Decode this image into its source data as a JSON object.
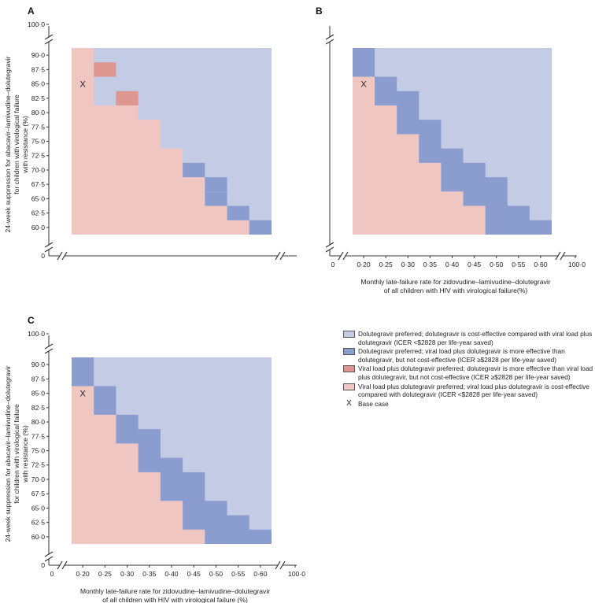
{
  "colors": {
    "dtg": "#c4cbe5",
    "dtg_more_effective": "#8b9dcf",
    "vl_more_effective": "#de9690",
    "vl": "#f0c6c3",
    "axis": "#333333"
  },
  "legend": {
    "items": [
      {
        "key": "dtg",
        "label": "Dolutegravir preferred; dolutegravir is cost-effective compared with viral load plus dolutegravir (ICER <$2828 per life-year saved)"
      },
      {
        "key": "dtg_more_effective",
        "label": "Dolutegravir preferred; viral load plus dolutegravir is more effective than dolutegravir, but not cost-effective (ICER ≥$2828 per life-year saved)"
      },
      {
        "key": "vl_more_effective",
        "label": "Viral load plus dolutegravir preferred; dolutegravir is more effective than viral load plus dolutegravir, but not cost-effective (ICER ≥$2828 per life-year saved)"
      },
      {
        "key": "vl",
        "label": "Viral load plus dolutegravir preferred; viral load plus dolutegravir is cost-effective compared with dolutegravir (ICER <$2828 per life-year saved)"
      }
    ],
    "base_case_marker": "X",
    "base_case_label": "Base case"
  },
  "chart_data": [
    {
      "panel": "A",
      "type": "heatmap",
      "xlabel": "",
      "ylabel": "24-week suppression for abacavir–lamivudine–dolutegravir for children with virological failure with resistance (%)",
      "x_ticks": [],
      "y_ticks": [
        "90·0",
        "87·5",
        "85·0",
        "82·5",
        "80·0",
        "77·5",
        "75·0",
        "72·5",
        "70·0",
        "67·5",
        "65·0",
        "62·5",
        "60·0"
      ],
      "x_break_labels": [],
      "y_break_labels": [
        "100·0",
        "0"
      ],
      "xlim": [
        0.175,
        0.625
      ],
      "ylim": [
        58.75,
        91.25
      ],
      "base_case": {
        "x": 0.2,
        "y": 85.0,
        "marker": "X"
      },
      "regions": [
        {
          "key": "vl",
          "outline": [
            [
              0.175,
              58.75
            ],
            [
              0.575,
              58.75
            ],
            [
              0.575,
              61.25
            ],
            [
              0.525,
              61.25
            ],
            [
              0.525,
              63.75
            ],
            [
              0.475,
              63.75
            ],
            [
              0.475,
              68.75
            ],
            [
              0.425,
              68.75
            ],
            [
              0.425,
              73.75
            ],
            [
              0.375,
              73.75
            ],
            [
              0.375,
              78.75
            ],
            [
              0.325,
              78.75
            ],
            [
              0.325,
              81.25
            ],
            [
              0.225,
              81.25
            ],
            [
              0.225,
              91.25
            ],
            [
              0.175,
              91.25
            ]
          ]
        },
        {
          "key": "vl_more_effective",
          "cells": [
            [
              0.25,
              87.5
            ],
            [
              0.3,
              82.5
            ]
          ]
        },
        {
          "key": "dtg_more_effective",
          "cells": [
            [
              0.45,
              70.0
            ],
            [
              0.5,
              67.5
            ],
            [
              0.5,
              65.0
            ],
            [
              0.55,
              62.5
            ],
            [
              0.6,
              60.0
            ]
          ]
        }
      ]
    },
    {
      "panel": "B",
      "type": "heatmap",
      "xlabel": "Monthly late-failure rate for zidovudine–lamivudine–dolutegravir of all children with HIV with virological failure(%)",
      "ylabel": "",
      "x_ticks": [
        "0·20",
        "0·25",
        "0·30",
        "0·35",
        "0·40",
        "0·45",
        "0·50",
        "0·55",
        "0·60"
      ],
      "y_ticks": [],
      "x_break_labels": [
        "0",
        "100·0"
      ],
      "y_break_labels": [],
      "xlim": [
        0.175,
        0.625
      ],
      "ylim": [
        58.75,
        91.25
      ],
      "base_case": {
        "x": 0.2,
        "y": 85.0,
        "marker": "X"
      },
      "regions": [
        {
          "key": "vl",
          "outline": [
            [
              0.175,
              58.75
            ],
            [
              0.475,
              58.75
            ],
            [
              0.475,
              63.75
            ],
            [
              0.425,
              63.75
            ],
            [
              0.425,
              66.25
            ],
            [
              0.375,
              66.25
            ],
            [
              0.375,
              71.25
            ],
            [
              0.325,
              71.25
            ],
            [
              0.325,
              76.25
            ],
            [
              0.275,
              76.25
            ],
            [
              0.275,
              81.25
            ],
            [
              0.225,
              81.25
            ],
            [
              0.225,
              86.25
            ],
            [
              0.175,
              86.25
            ]
          ]
        },
        {
          "key": "dtg_more_effective",
          "outline": [
            [
              0.175,
              86.25
            ],
            [
              0.225,
              86.25
            ],
            [
              0.225,
              81.25
            ],
            [
              0.275,
              81.25
            ],
            [
              0.275,
              76.25
            ],
            [
              0.325,
              76.25
            ],
            [
              0.325,
              71.25
            ],
            [
              0.375,
              71.25
            ],
            [
              0.375,
              66.25
            ],
            [
              0.425,
              66.25
            ],
            [
              0.425,
              63.75
            ],
            [
              0.475,
              63.75
            ],
            [
              0.475,
              58.75
            ],
            [
              0.625,
              58.75
            ],
            [
              0.625,
              61.25
            ],
            [
              0.575,
              61.25
            ],
            [
              0.575,
              63.75
            ],
            [
              0.525,
              63.75
            ],
            [
              0.525,
              68.75
            ],
            [
              0.475,
              68.75
            ],
            [
              0.475,
              71.25
            ],
            [
              0.425,
              71.25
            ],
            [
              0.425,
              73.75
            ],
            [
              0.375,
              73.75
            ],
            [
              0.375,
              78.75
            ],
            [
              0.325,
              78.75
            ],
            [
              0.325,
              83.75
            ],
            [
              0.275,
              83.75
            ],
            [
              0.275,
              86.25
            ],
            [
              0.225,
              86.25
            ],
            [
              0.225,
              91.25
            ],
            [
              0.175,
              91.25
            ]
          ]
        }
      ]
    },
    {
      "panel": "C",
      "type": "heatmap",
      "xlabel": "Monthly late-failure rate for zidovudine–lamivudine–dolutegravir of all children with HIV with virological failure (%)",
      "ylabel": "24-week suppression for abacavir–lamivudine–dolutegravir for children with virological failure with resistance (%)",
      "x_ticks": [
        "0·20",
        "0·25",
        "0·30",
        "0·35",
        "0·40",
        "0·45",
        "0·50",
        "0·55",
        "0·60"
      ],
      "y_ticks": [
        "90·0",
        "87·5",
        "85·0",
        "82·5",
        "80·0",
        "77·5",
        "75·0",
        "72·5",
        "70·0",
        "67·5",
        "65·0",
        "62·5",
        "60·0"
      ],
      "x_break_labels": [
        "0",
        "100·0"
      ],
      "y_break_labels": [
        "100·0",
        "0"
      ],
      "xlim": [
        0.175,
        0.625
      ],
      "ylim": [
        58.75,
        91.25
      ],
      "base_case": {
        "x": 0.2,
        "y": 85.0,
        "marker": "X"
      },
      "regions": [
        {
          "key": "vl",
          "outline": [
            [
              0.175,
              58.75
            ],
            [
              0.475,
              58.75
            ],
            [
              0.475,
              61.25
            ],
            [
              0.425,
              61.25
            ],
            [
              0.425,
              66.25
            ],
            [
              0.375,
              66.25
            ],
            [
              0.375,
              71.25
            ],
            [
              0.325,
              71.25
            ],
            [
              0.325,
              76.25
            ],
            [
              0.275,
              76.25
            ],
            [
              0.275,
              81.25
            ],
            [
              0.225,
              81.25
            ],
            [
              0.225,
              86.25
            ],
            [
              0.175,
              86.25
            ]
          ]
        },
        {
          "key": "dtg_more_effective",
          "outline": [
            [
              0.175,
              86.25
            ],
            [
              0.225,
              86.25
            ],
            [
              0.225,
              81.25
            ],
            [
              0.275,
              81.25
            ],
            [
              0.275,
              76.25
            ],
            [
              0.325,
              76.25
            ],
            [
              0.325,
              71.25
            ],
            [
              0.375,
              71.25
            ],
            [
              0.375,
              66.25
            ],
            [
              0.425,
              66.25
            ],
            [
              0.425,
              61.25
            ],
            [
              0.475,
              61.25
            ],
            [
              0.475,
              58.75
            ],
            [
              0.625,
              58.75
            ],
            [
              0.625,
              61.25
            ],
            [
              0.575,
              61.25
            ],
            [
              0.575,
              63.75
            ],
            [
              0.525,
              63.75
            ],
            [
              0.525,
              66.25
            ],
            [
              0.475,
              66.25
            ],
            [
              0.475,
              71.25
            ],
            [
              0.425,
              71.25
            ],
            [
              0.425,
              73.75
            ],
            [
              0.375,
              73.75
            ],
            [
              0.375,
              78.75
            ],
            [
              0.325,
              78.75
            ],
            [
              0.325,
              81.25
            ],
            [
              0.275,
              81.25
            ],
            [
              0.275,
              86.25
            ],
            [
              0.225,
              86.25
            ],
            [
              0.225,
              91.25
            ],
            [
              0.175,
              91.25
            ]
          ]
        }
      ]
    }
  ]
}
